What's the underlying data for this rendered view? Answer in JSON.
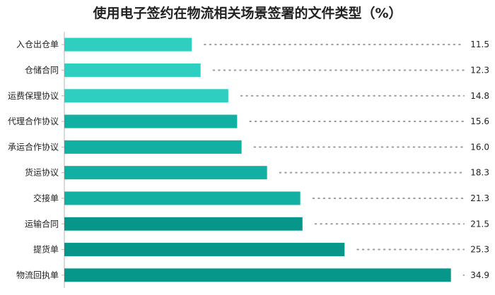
{
  "chart_data": {
    "type": "bar",
    "orientation": "horizontal",
    "title": "使用电子签约在物流相关场景签署的文件类型（%）",
    "categories": [
      "入仓出仓单",
      "仓储合同",
      "运费保理协议",
      "代理合作协议",
      "承运合作协议",
      "货运协议",
      "交接单",
      "运输合同",
      "提货单",
      "物流回执单"
    ],
    "values": [
      11.5,
      12.3,
      14.8,
      15.6,
      16.0,
      18.3,
      21.3,
      21.5,
      25.3,
      34.9
    ],
    "value_labels": [
      "11.5",
      "12.3",
      "14.8",
      "15.6",
      "16.0",
      "18.3",
      "21.3",
      "21.5",
      "25.3",
      "34.9"
    ],
    "xlim": [
      0,
      36
    ],
    "xlabel": "",
    "ylabel": "",
    "grid": false,
    "leader_lines": "dotted",
    "colors": [
      "#2ecfc0",
      "#2ecfc0",
      "#2ecfc0",
      "#12b0a2",
      "#12b0a2",
      "#12b0a2",
      "#12b0a2",
      "#06978a",
      "#06978a",
      "#06978a"
    ],
    "leader_color": "#9a9a9a"
  }
}
